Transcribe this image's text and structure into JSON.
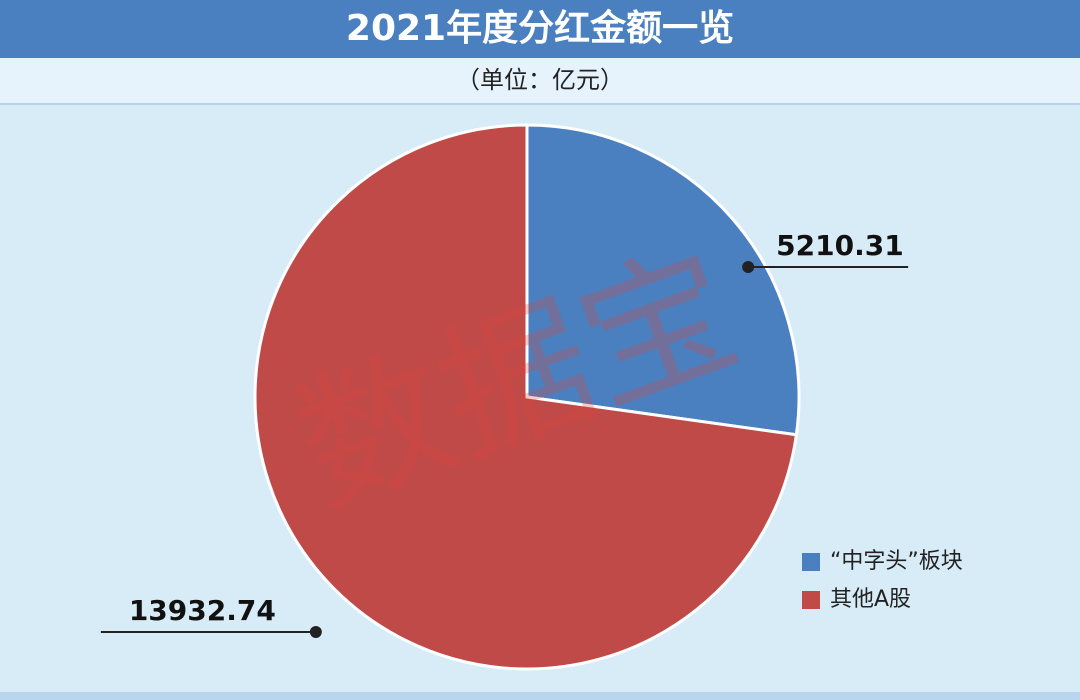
{
  "chart_data": {
    "type": "pie",
    "title": "2021年度分红金额一览",
    "subtitle": "（单位：亿元）",
    "categories": [
      "“中字头”板块",
      "其他A股"
    ],
    "values": [
      5210.31,
      13932.74
    ],
    "colors": [
      "#4a80c0",
      "#bf4a48"
    ],
    "watermark": "数据宝",
    "legend": "lower-right"
  }
}
